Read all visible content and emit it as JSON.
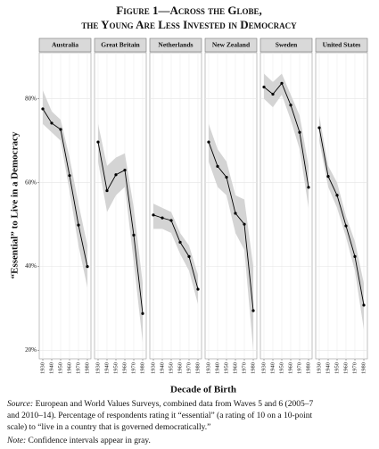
{
  "figure": {
    "title_line1": "Figure 1—Across the Globe,",
    "title_line2": "the Young Are Less Invested in Democracy",
    "ylabel": "“Essential” to Live in a Democracy",
    "xlabel": "Decade of Birth"
  },
  "chart_data": [
    {
      "type": "line",
      "title": "Australia",
      "x": [
        1930,
        1940,
        1950,
        1960,
        1970,
        1980
      ],
      "values": [
        77.6,
        74.2,
        72.7,
        61.7,
        49.9,
        40
      ],
      "ci_upper": [
        82,
        77,
        75,
        66,
        55,
        45
      ],
      "ci_lower": [
        74,
        72,
        70,
        58,
        45,
        35
      ],
      "xlim": [
        1926,
        1984
      ],
      "ylim": [
        18,
        91
      ],
      "xticks": [
        1930,
        1940,
        1950,
        1960,
        1970,
        1980
      ],
      "yticks": [
        {
          "value": 20,
          "label": "20%"
        },
        {
          "value": 40,
          "label": "40%"
        },
        {
          "value": 60,
          "label": "60%"
        },
        {
          "value": 80,
          "label": "80%"
        }
      ],
      "color": "#000000",
      "band_color": "#d4d4d4",
      "grid": true
    },
    {
      "type": "line",
      "title": "Great Britain",
      "x": [
        1930,
        1940,
        1950,
        1960,
        1970,
        1980
      ],
      "values": [
        69.7,
        58.1,
        61.9,
        63.0,
        47.5,
        28.8
      ],
      "ci_upper": [
        74,
        64,
        66,
        67,
        54,
        36
      ],
      "ci_lower": [
        65,
        53,
        57,
        59,
        41,
        22
      ],
      "xlim": [
        1926,
        1984
      ],
      "ylim": [
        18,
        91
      ],
      "xticks": [
        1930,
        1940,
        1950,
        1960,
        1970,
        1980
      ],
      "color": "#000000",
      "band_color": "#d4d4d4",
      "grid": true
    },
    {
      "type": "line",
      "title": "Netherlands",
      "x": [
        1930,
        1940,
        1950,
        1960,
        1970,
        1980
      ],
      "values": [
        52.3,
        51.6,
        51.0,
        45.8,
        42.4,
        34.6
      ],
      "ci_upper": [
        55,
        54,
        53,
        48,
        45,
        38
      ],
      "ci_lower": [
        49,
        49,
        48,
        43,
        39,
        31
      ],
      "xlim": [
        1926,
        1984
      ],
      "ylim": [
        18,
        91
      ],
      "xticks": [
        1930,
        1940,
        1950,
        1960,
        1970,
        1980
      ],
      "color": "#000000",
      "band_color": "#d4d4d4",
      "grid": true
    },
    {
      "type": "line",
      "title": "New Zealand",
      "x": [
        1930,
        1940,
        1950,
        1960,
        1970,
        1980
      ],
      "values": [
        69.7,
        63.9,
        61.3,
        52.7,
        50.1,
        29.5
      ],
      "ci_upper": [
        74,
        68,
        65,
        57,
        56,
        40
      ],
      "ci_lower": [
        65,
        59,
        57,
        48,
        44,
        20
      ],
      "xlim": [
        1926,
        1984
      ],
      "ylim": [
        18,
        91
      ],
      "xticks": [
        1930,
        1940,
        1950,
        1960,
        1970,
        1980
      ],
      "color": "#000000",
      "band_color": "#d4d4d4",
      "grid": true
    },
    {
      "type": "line",
      "title": "Sweden",
      "x": [
        1930,
        1940,
        1950,
        1960,
        1970,
        1980
      ],
      "values": [
        82.8,
        81.1,
        83.7,
        78.5,
        72.0,
        58.9
      ],
      "ci_upper": [
        86,
        84,
        86,
        81,
        76,
        64
      ],
      "ci_lower": [
        80,
        78,
        81,
        75,
        68,
        54
      ],
      "xlim": [
        1926,
        1984
      ],
      "ylim": [
        18,
        91
      ],
      "xticks": [
        1930,
        1940,
        1950,
        1960,
        1970,
        1980
      ],
      "color": "#000000",
      "band_color": "#d4d4d4",
      "grid": true
    },
    {
      "type": "line",
      "title": "United States",
      "x": [
        1930,
        1940,
        1950,
        1960,
        1970,
        1980
      ],
      "values": [
        73.1,
        61.5,
        57.0,
        49.7,
        42.4,
        30.8
      ],
      "ci_upper": [
        76,
        64,
        60,
        52,
        46,
        36
      ],
      "ci_lower": [
        70,
        59,
        54,
        47,
        39,
        25
      ],
      "xlim": [
        1926,
        1984
      ],
      "ylim": [
        18,
        91
      ],
      "xticks": [
        1930,
        1940,
        1950,
        1960,
        1970,
        1980
      ],
      "color": "#000000",
      "band_color": "#d4d4d4",
      "grid": true
    }
  ],
  "notes": {
    "source_label": "Source:",
    "source_line1": "European and World Values Surveys, combined data from Waves 5 and 6 (2005–7",
    "source_line2": "and 2010–14). Percentage of respondents rating it “essential” (a rating of 10 on a 10-point",
    "source_line3": "scale) to “live in a country that is governed democratically.”",
    "note_label": "Note:",
    "note_text": "Confidence intervals appear in gray."
  }
}
